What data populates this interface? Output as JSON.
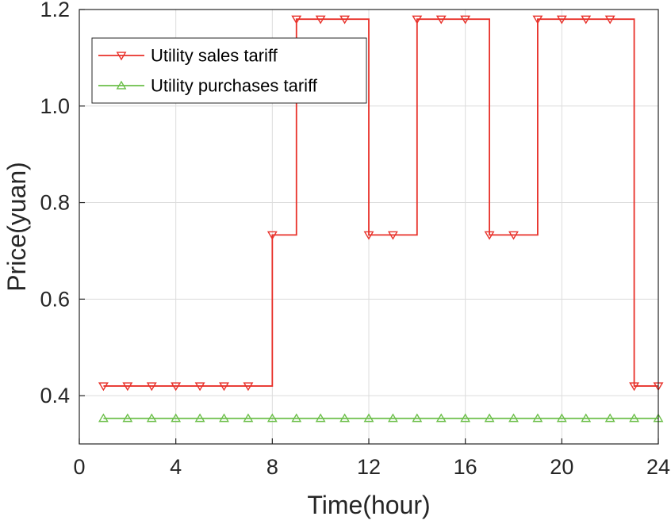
{
  "chart_data": {
    "type": "line",
    "title": "",
    "xlabel": "Time(hour)",
    "ylabel": "Price(yuan)",
    "xlim": [
      0,
      24
    ],
    "ylim": [
      0.3,
      1.2
    ],
    "xticks": [
      0,
      4,
      8,
      12,
      16,
      20,
      24
    ],
    "yticks": [
      0.4,
      0.6,
      0.8,
      1.0,
      1.2
    ],
    "ytick_labels": [
      "0.4",
      "0.6",
      "0.8",
      "1.0",
      "1.2"
    ],
    "grid": true,
    "legend_position": "top-left",
    "x": [
      1,
      2,
      3,
      4,
      5,
      6,
      7,
      8,
      9,
      10,
      11,
      12,
      13,
      14,
      15,
      16,
      17,
      18,
      19,
      20,
      21,
      22,
      23,
      24
    ],
    "series": [
      {
        "name": "Utility sales tariff",
        "color": "#e8312a",
        "marker": "triangle-down",
        "style": "stairs",
        "values": [
          0.42,
          0.42,
          0.42,
          0.42,
          0.42,
          0.42,
          0.42,
          0.733,
          1.18,
          1.18,
          1.18,
          0.733,
          0.733,
          1.18,
          1.18,
          1.18,
          0.733,
          0.733,
          1.18,
          1.18,
          1.18,
          1.18,
          0.42,
          0.42
        ]
      },
      {
        "name": "Utility purchases tariff",
        "color": "#6cbf4a",
        "marker": "triangle-up",
        "style": "line",
        "values": [
          0.353,
          0.353,
          0.353,
          0.353,
          0.353,
          0.353,
          0.353,
          0.353,
          0.353,
          0.353,
          0.353,
          0.353,
          0.353,
          0.353,
          0.353,
          0.353,
          0.353,
          0.353,
          0.353,
          0.353,
          0.353,
          0.353,
          0.353,
          0.353
        ]
      }
    ]
  }
}
